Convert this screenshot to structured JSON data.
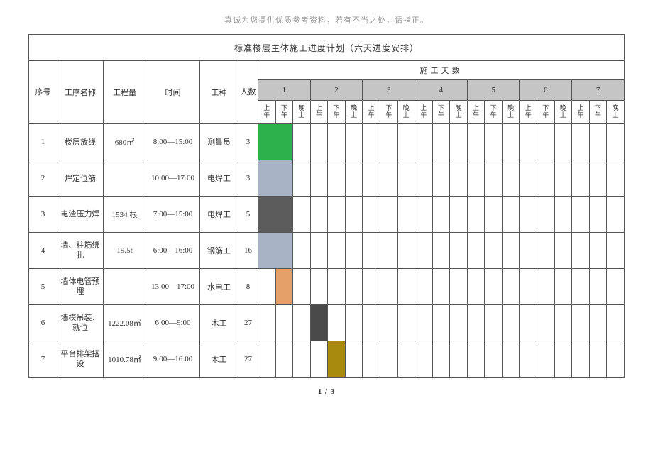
{
  "header_note": "真诚为您提供优质参考资料，若有不当之处，请指正。",
  "title": "标准楼层主体施工进度计划（六天进度安排）",
  "columns": {
    "seq": "序号",
    "name": "工序名称",
    "qty": "工程量",
    "time": "时间",
    "work": "工种",
    "people": "人数",
    "days_caption": "施工天数"
  },
  "day_labels": [
    "1",
    "2",
    "3",
    "4",
    "5",
    "6",
    "7"
  ],
  "slot_labels": [
    "上午",
    "下午",
    "晚上"
  ],
  "rows": [
    {
      "seq": "1",
      "name": "楼层放线",
      "qty": "680㎡",
      "time": "8:00—15:00",
      "work": "测量员",
      "people": "3",
      "bars": [
        {
          "start": 0,
          "span": 2,
          "color": "#2bb24c"
        }
      ]
    },
    {
      "seq": "2",
      "name": "焊定位筋",
      "qty": "",
      "time": "10:00—17:00",
      "work": "电焊工",
      "people": "3",
      "bars": [
        {
          "start": 0,
          "span": 2,
          "color": "#a8b4c6"
        }
      ]
    },
    {
      "seq": "3",
      "name": "电渣压力焊",
      "qty": "1534 根",
      "time": "7:00—15:00",
      "work": "电焊工",
      "people": "5",
      "bars": [
        {
          "start": 0,
          "span": 2,
          "color": "#5c5c5c"
        }
      ]
    },
    {
      "seq": "4",
      "name": "墙、柱筋绑扎",
      "qty": "19.5t",
      "time": "6:00—16:00",
      "work": "钢筋工",
      "people": "16",
      "bars": [
        {
          "start": 0,
          "span": 2,
          "color": "#a8b4c6"
        }
      ]
    },
    {
      "seq": "5",
      "name": "墙体电管预埋",
      "qty": "",
      "time": "13:00—17:00",
      "work": "水电工",
      "people": "8",
      "bars": [
        {
          "start": 1,
          "span": 1,
          "color": "#e5a06a"
        }
      ]
    },
    {
      "seq": "6",
      "name": "墙模吊装、就位",
      "qty": "1222.08㎡",
      "time": "6:00—9:00",
      "work": "木工",
      "people": "27",
      "bars": [
        {
          "start": 3,
          "span": 1,
          "color": "#4a4a4a"
        }
      ]
    },
    {
      "seq": "7",
      "name": "平台排架搭设",
      "qty": "1010.78㎡",
      "time": "9:00—16:00",
      "work": "木工",
      "people": "27",
      "bars": [
        {
          "start": 4,
          "span": 1,
          "color": "#a88a0f"
        }
      ]
    }
  ],
  "total_slots": 21,
  "page_num": "1 / 3"
}
